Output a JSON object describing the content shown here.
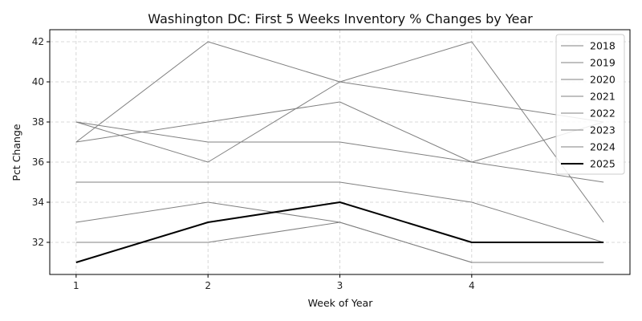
{
  "chart_data": {
    "type": "line",
    "title": "Washington DC: First 5 Weeks Inventory % Changes by Year",
    "xlabel": "Week of Year",
    "ylabel": "Pct Change",
    "x": [
      1,
      2,
      3,
      4,
      5
    ],
    "x_ticks": [
      "1",
      "2",
      "3",
      "4"
    ],
    "y_ticks": [
      "32",
      "34",
      "36",
      "38",
      "40",
      "42"
    ],
    "xlim": [
      0.8,
      5.2
    ],
    "ylim": [
      30.4,
      42.6
    ],
    "grid": true,
    "legend_position": "top-right",
    "series": [
      {
        "name": "2018",
        "values": [
          37,
          42,
          40,
          39,
          38
        ],
        "color": "#808080",
        "highlight": false
      },
      {
        "name": "2019",
        "values": [
          38,
          36,
          40,
          42,
          33
        ],
        "color": "#808080",
        "highlight": false
      },
      {
        "name": "2020",
        "values": [
          37,
          38,
          39,
          36,
          38
        ],
        "color": "#808080",
        "highlight": false
      },
      {
        "name": "2021",
        "values": [
          38,
          37,
          37,
          36,
          35
        ],
        "color": "#808080",
        "highlight": false
      },
      {
        "name": "2022",
        "values": [
          35,
          35,
          35,
          34,
          32
        ],
        "color": "#808080",
        "highlight": false
      },
      {
        "name": "2023",
        "values": [
          33,
          34,
          33,
          31,
          31
        ],
        "color": "#808080",
        "highlight": false
      },
      {
        "name": "2024",
        "values": [
          32,
          32,
          33,
          31,
          31
        ],
        "color": "#808080",
        "highlight": false
      },
      {
        "name": "2025",
        "values": [
          31,
          33,
          34,
          32,
          32
        ],
        "color": "#000000",
        "highlight": true
      }
    ]
  }
}
